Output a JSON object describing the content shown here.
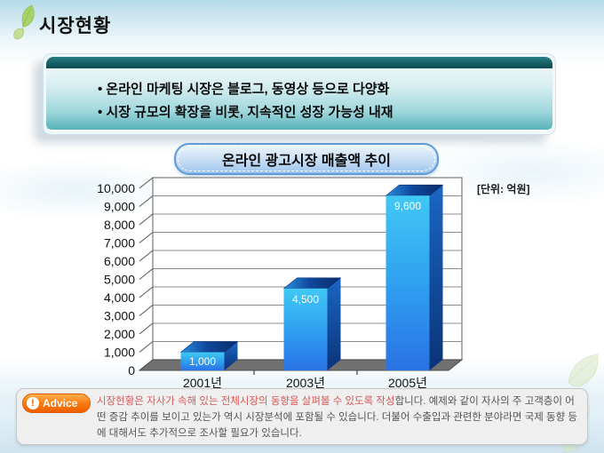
{
  "slide": {
    "title": "시장현황",
    "bullets": [
      "• 온라인 마케팅 시장은 블로그, 동영상 등으로 다양화",
      "• 시장 규모의 확장을 비롯, 지속적인 성장 가능성 내재"
    ],
    "chart_title": "온라인 광고시장 매출액 추이"
  },
  "chart_data": {
    "type": "bar",
    "style": "3d-column",
    "title": "온라인 광고시장 매출액 추이",
    "categories": [
      "2001년",
      "2003년",
      "2005년"
    ],
    "values": [
      1000,
      4500,
      9600
    ],
    "value_labels": [
      "1,000",
      "4,500",
      "9,600"
    ],
    "unit_label": "[단위: 억원]",
    "xlabel": "",
    "ylabel": "",
    "ylim": [
      0,
      10000
    ],
    "ytick_step": 1000,
    "grid": true,
    "legend": "none",
    "colors": {
      "bar_front_top": "#41c8f4",
      "bar_front_mid": "#2e9cf0",
      "bar_front_bottom": "#2a72e4",
      "bar_top_light": "#2a8fe0",
      "bar_top_dark": "#0a2c6b",
      "bar_side_top": "#1a66c4",
      "bar_side_bottom": "#0b3378",
      "floor": "#707070",
      "gridline": "#8c8c8c",
      "wall_border": "#7a7a7a",
      "label": "#111111",
      "value_label": "#ffffff"
    }
  },
  "advice": {
    "label": "Advice",
    "icon": "exclamation-circle",
    "text_red": "시장현황은 자사가 속해 있는 전체시장의 동향을 살펴볼 수 있도록 작성",
    "text_rest": "합니다. 예제와 같이 자사의 주 고객층이 어떤 증감 추이를 보이고 있는가 역시 시장분석에 포함될 수 있습니다. 더불어 수출입과 관련한 분야라면 국제 동향 등에 대해서도 추가적으로 조사할 필요가 있습니다."
  }
}
